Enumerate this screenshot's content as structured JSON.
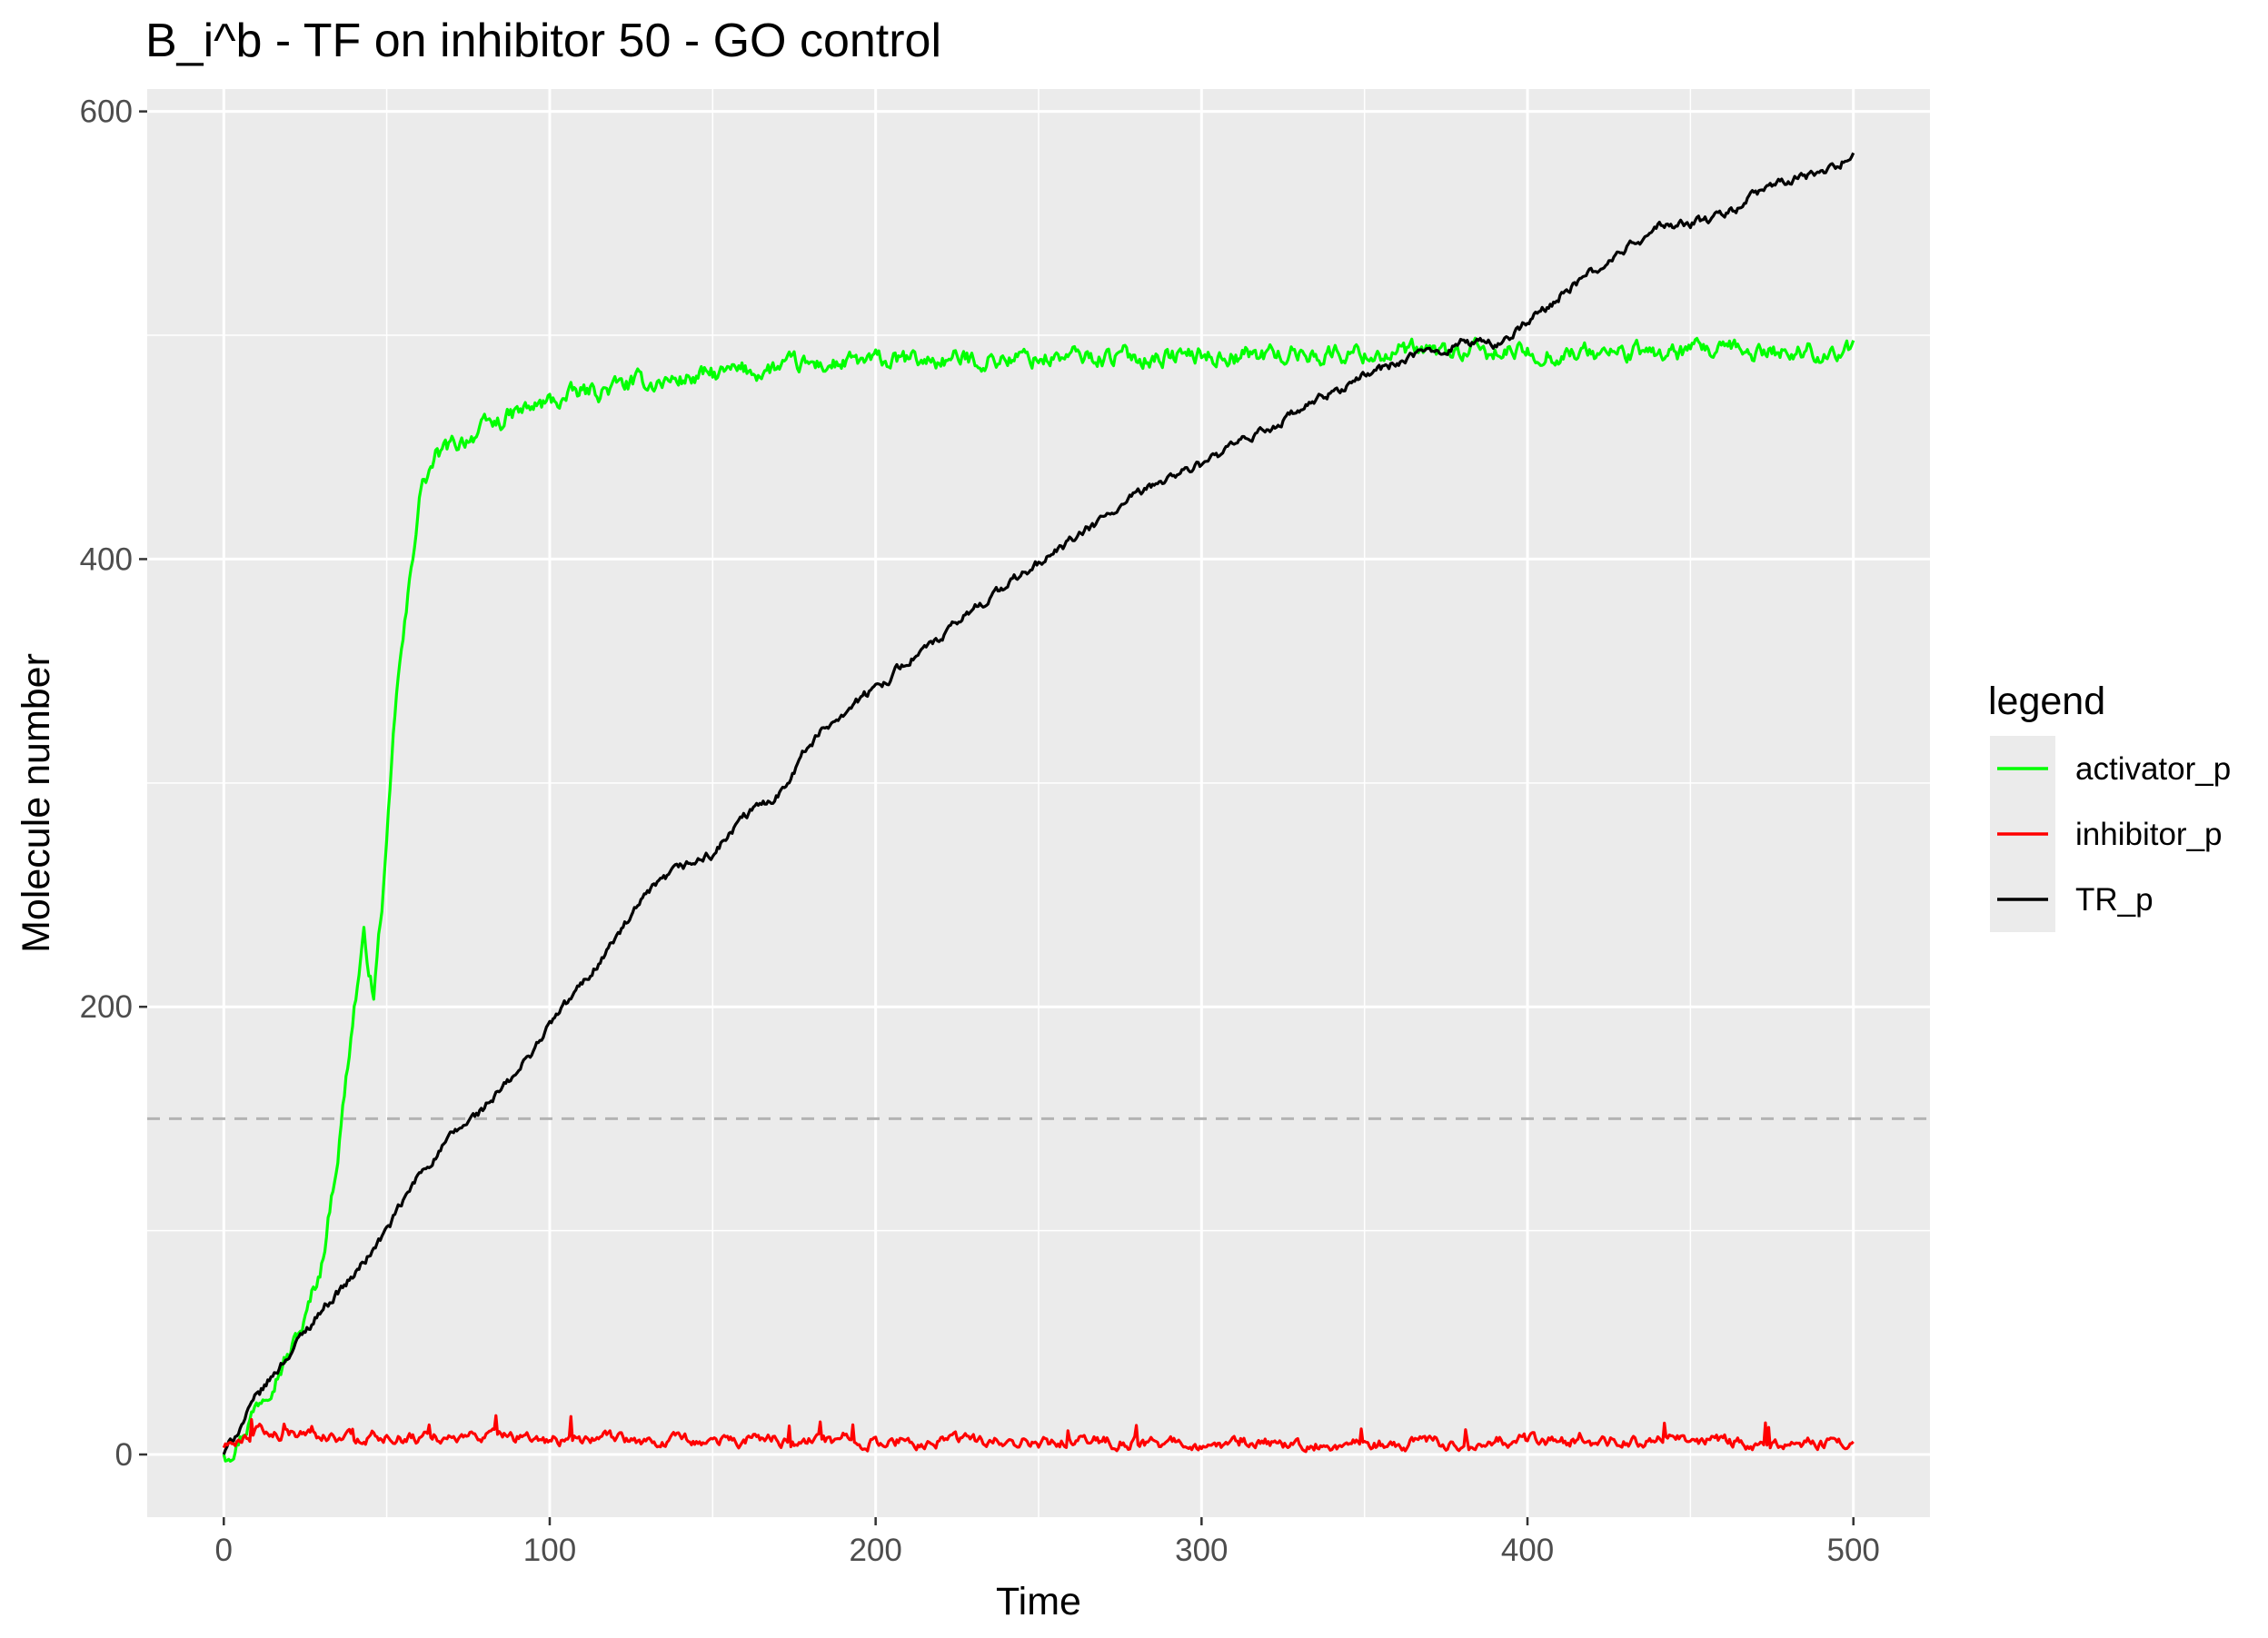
{
  "chart_data": {
    "type": "line",
    "title": "B_i^b - TF on inhibitor 50 - GO control",
    "xlabel": "Time",
    "ylabel": "Molecule number",
    "xlim": [
      -23.5,
      523.5
    ],
    "ylim": [
      -28,
      610
    ],
    "x_ticks": [
      0,
      100,
      200,
      300,
      400,
      500
    ],
    "x_tick_labels": [
      "0",
      "100",
      "200",
      "300",
      "400",
      "500"
    ],
    "y_ticks": [
      0,
      200,
      400,
      600
    ],
    "y_tick_labels": [
      "0",
      "200",
      "400",
      "600"
    ],
    "grid": true,
    "legend": {
      "title": "legend",
      "position": "right"
    },
    "reference_line": {
      "y": 150,
      "style": "dashed",
      "color": "#b3b3b3"
    },
    "series": [
      {
        "name": "activator_p",
        "color": "#00ff00",
        "points": [
          [
            0,
            0
          ],
          [
            5,
            8
          ],
          [
            10,
            22
          ],
          [
            15,
            35
          ],
          [
            20,
            45
          ],
          [
            25,
            60
          ],
          [
            30,
            85
          ],
          [
            35,
            135
          ],
          [
            40,
            200
          ],
          [
            43,
            230
          ],
          [
            46,
            205
          ],
          [
            50,
            270
          ],
          [
            53,
            340
          ],
          [
            56,
            375
          ],
          [
            58,
            400
          ],
          [
            60,
            430
          ],
          [
            65,
            445
          ],
          [
            70,
            450
          ],
          [
            75,
            455
          ],
          [
            80,
            458
          ],
          [
            90,
            465
          ],
          [
            100,
            470
          ],
          [
            110,
            474
          ],
          [
            125,
            478
          ],
          [
            150,
            482
          ],
          [
            175,
            486
          ],
          [
            200,
            488
          ],
          [
            250,
            490
          ],
          [
            300,
            491
          ],
          [
            350,
            492
          ],
          [
            400,
            492
          ],
          [
            450,
            492
          ],
          [
            500,
            493
          ]
        ],
        "noise": 4
      },
      {
        "name": "inhibitor_p",
        "color": "#ff0000",
        "points": [
          [
            0,
            3
          ],
          [
            5,
            8
          ],
          [
            10,
            10
          ],
          [
            20,
            9
          ],
          [
            50,
            8
          ],
          [
            100,
            7
          ],
          [
            150,
            7
          ],
          [
            200,
            6
          ],
          [
            250,
            6
          ],
          [
            300,
            5
          ],
          [
            350,
            5
          ],
          [
            400,
            6
          ],
          [
            450,
            6
          ],
          [
            500,
            5
          ]
        ],
        "noise": 2.5
      },
      {
        "name": "TR_p",
        "color": "#000000",
        "points": [
          [
            0,
            0
          ],
          [
            10,
            25
          ],
          [
            20,
            45
          ],
          [
            30,
            65
          ],
          [
            40,
            80
          ],
          [
            50,
            100
          ],
          [
            60,
            125
          ],
          [
            70,
            142
          ],
          [
            80,
            155
          ],
          [
            90,
            170
          ],
          [
            100,
            192
          ],
          [
            110,
            210
          ],
          [
            120,
            230
          ],
          [
            130,
            250
          ],
          [
            140,
            262
          ],
          [
            150,
            268
          ],
          [
            160,
            285
          ],
          [
            170,
            295
          ],
          [
            180,
            318
          ],
          [
            190,
            332
          ],
          [
            200,
            342
          ],
          [
            210,
            355
          ],
          [
            220,
            364
          ],
          [
            230,
            378
          ],
          [
            240,
            388
          ],
          [
            250,
            398
          ],
          [
            260,
            408
          ],
          [
            270,
            418
          ],
          [
            280,
            428
          ],
          [
            290,
            437
          ],
          [
            300,
            442
          ],
          [
            310,
            450
          ],
          [
            320,
            458
          ],
          [
            330,
            466
          ],
          [
            340,
            474
          ],
          [
            350,
            482
          ],
          [
            360,
            488
          ],
          [
            370,
            492
          ],
          [
            380,
            497
          ],
          [
            390,
            496
          ],
          [
            400,
            505
          ],
          [
            410,
            518
          ],
          [
            420,
            528
          ],
          [
            430,
            538
          ],
          [
            440,
            548
          ],
          [
            450,
            550
          ],
          [
            460,
            553
          ],
          [
            470,
            563
          ],
          [
            480,
            569
          ],
          [
            490,
            572
          ],
          [
            500,
            581
          ]
        ],
        "noise": 2
      }
    ]
  }
}
